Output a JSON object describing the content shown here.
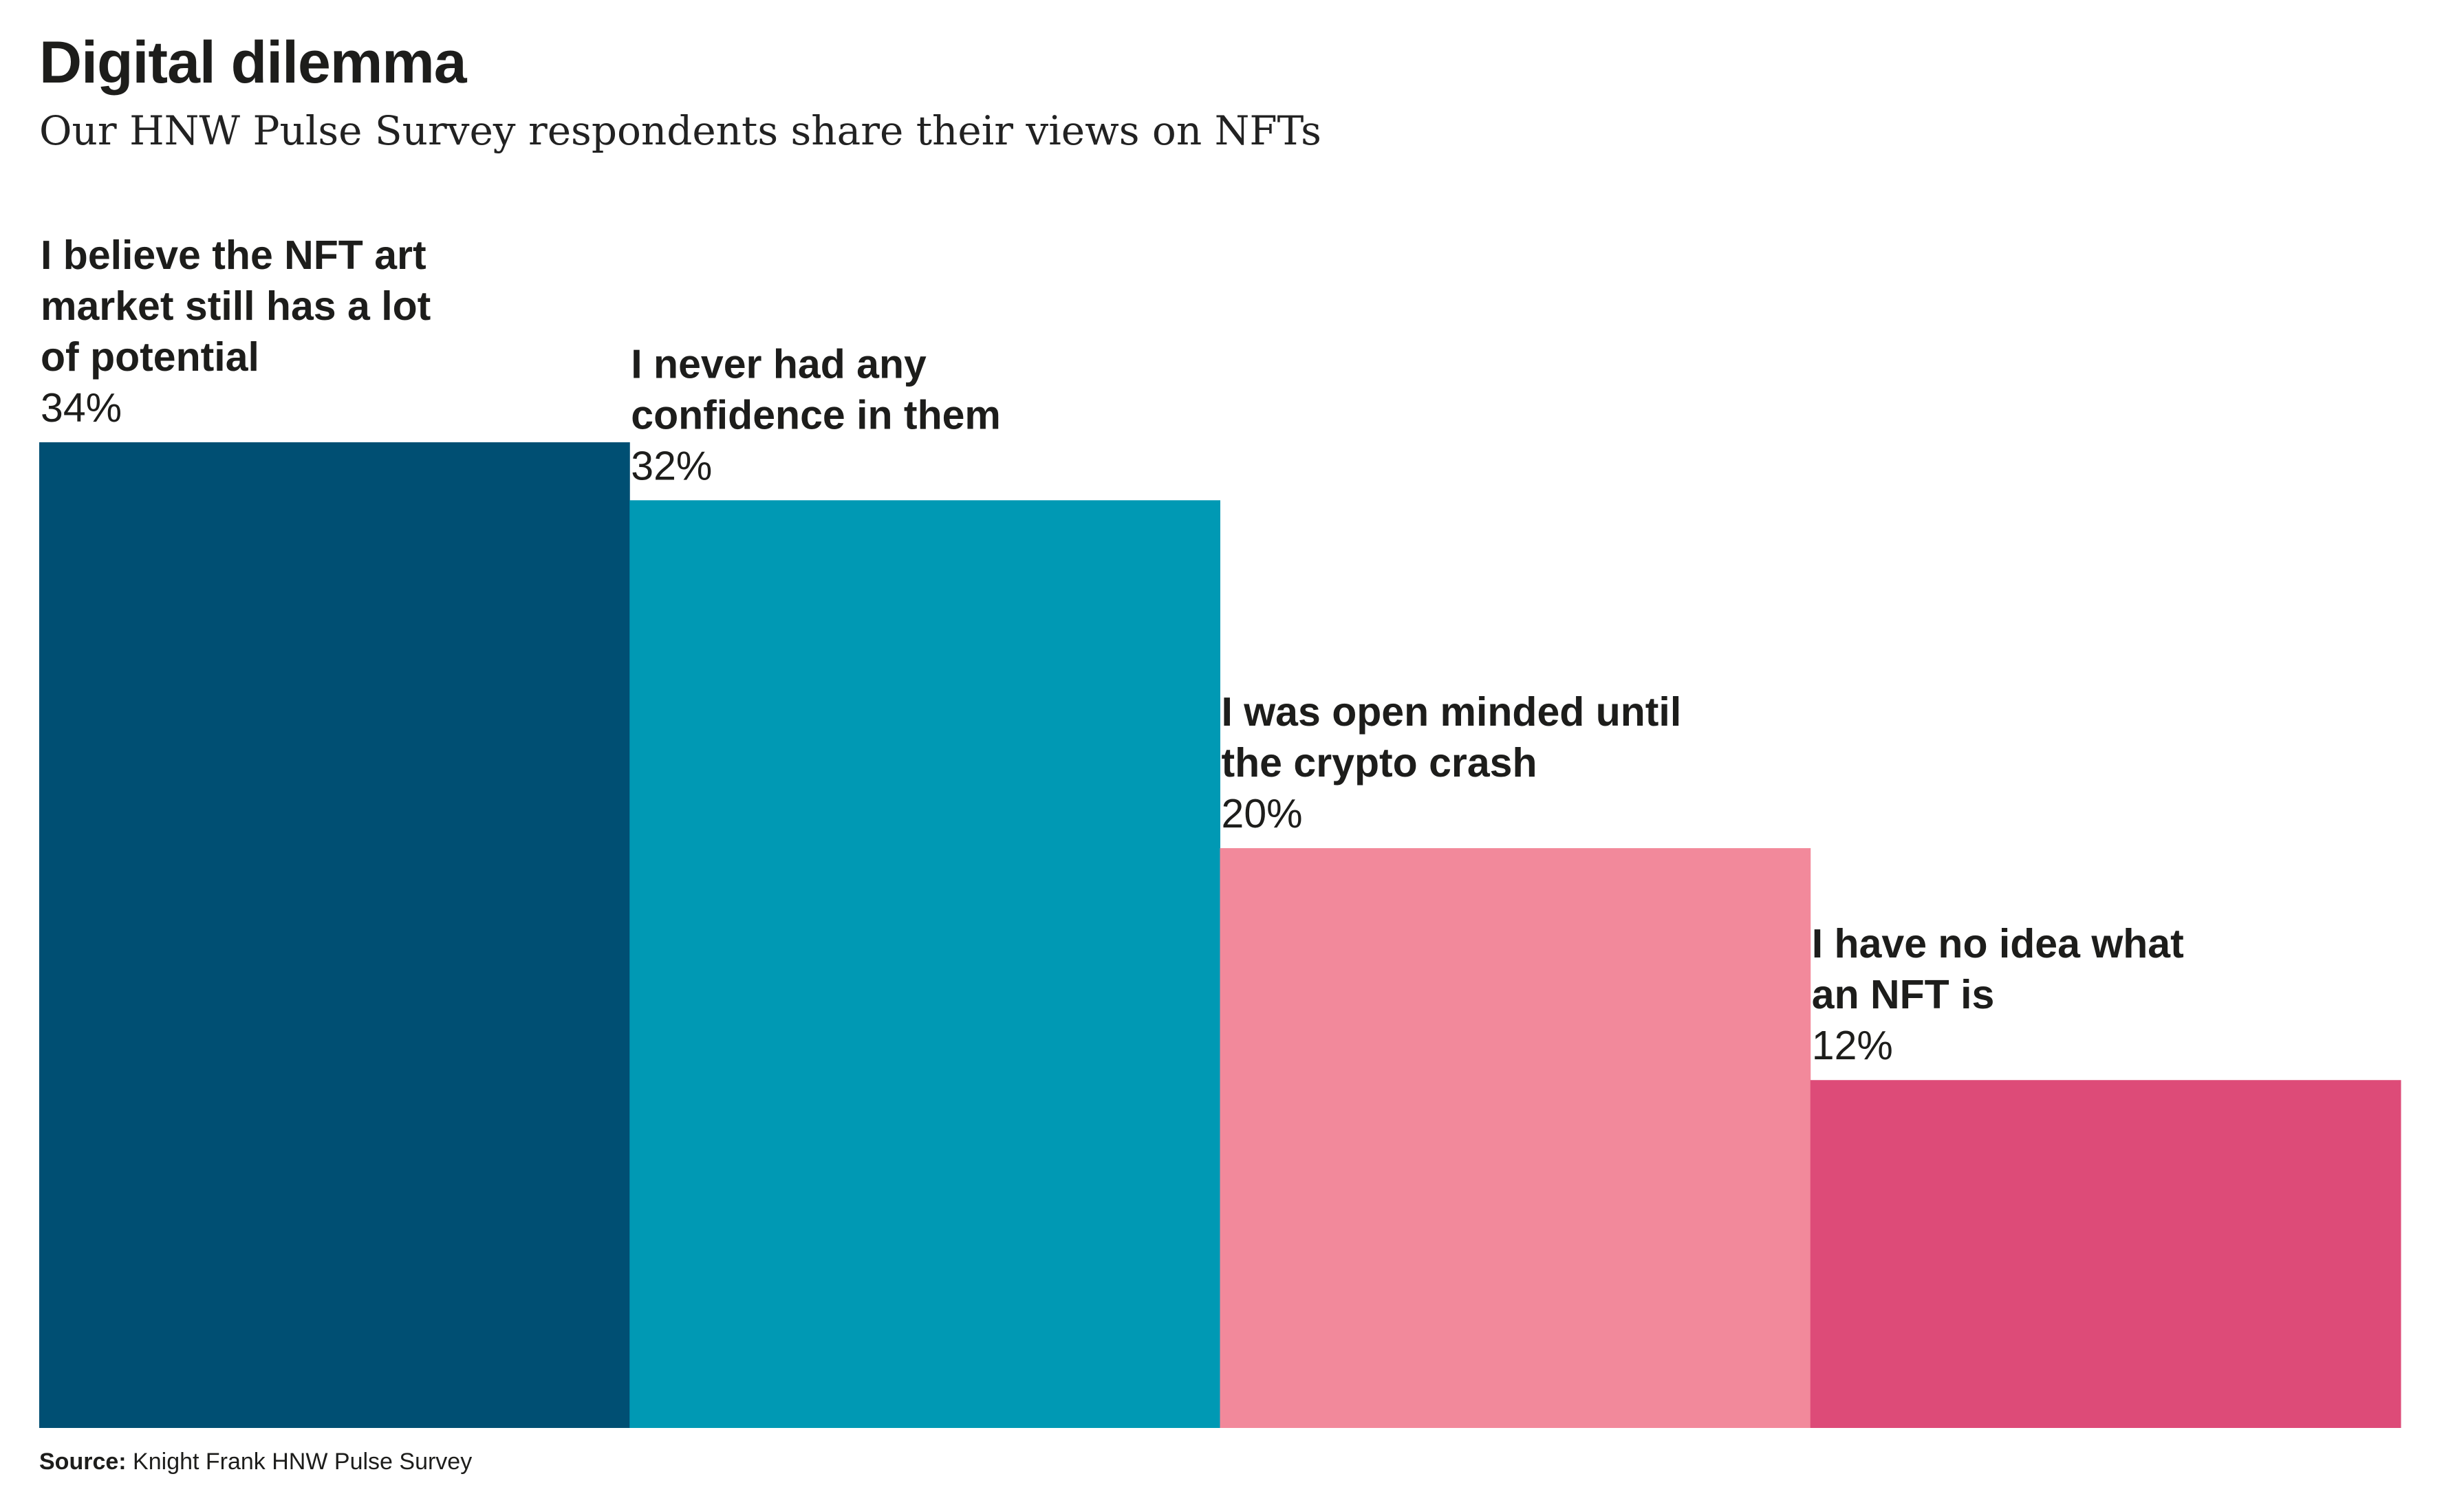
{
  "header": {
    "title": "Digital dilemma",
    "subtitle": "Our HNW Pulse Survey respondents share their views on NFTs"
  },
  "footer": {
    "source_prefix": "Source:",
    "source_text": "Knight Frank HNW Pulse Survey"
  },
  "chart_data": {
    "type": "bar",
    "title": "Digital dilemma",
    "subtitle": "Our HNW Pulse Survey respondents share their views on NFTs",
    "xlabel": "",
    "ylabel": "",
    "ylim": [
      0,
      34
    ],
    "grid": false,
    "unit": "%",
    "categories": [
      "I believe the NFT art market still has a lot of potential",
      "I never had any confidence in them",
      "I was open minded until the crypto crash",
      "I have no idea what an NFT is"
    ],
    "category_lines": [
      [
        "I believe the NFT art",
        "market still has a lot",
        "of potential"
      ],
      [
        "I never had any",
        "confidence in them"
      ],
      [
        "I was open minded until",
        "the crypto crash"
      ],
      [
        "I have no idea what",
        "an NFT is"
      ]
    ],
    "values": [
      34,
      32,
      20,
      12
    ],
    "value_labels": [
      "34%",
      "32%",
      "20%",
      "12%"
    ],
    "colors": [
      "#004f73",
      "#0099b4",
      "#f2899b",
      "#dd4b78"
    ]
  }
}
